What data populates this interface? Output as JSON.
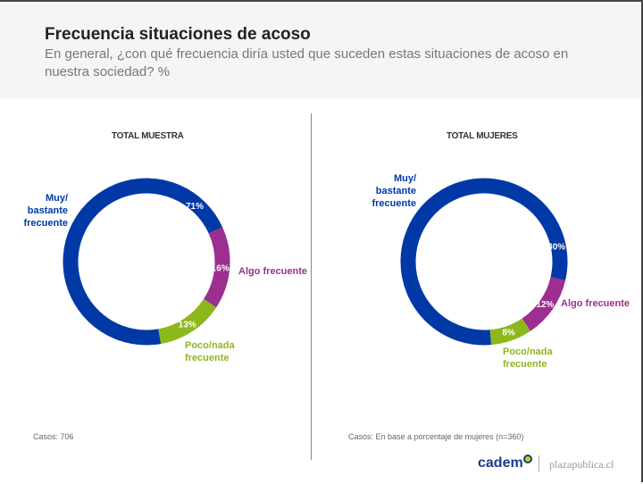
{
  "header": {
    "title": "Frecuencia situaciones de acoso",
    "subtitle": "En general, ¿con qué frecuencia diría usted que suceden estas situaciones de acoso en nuestra sociedad? %"
  },
  "colors": {
    "blue": "#0039a6",
    "purple": "#9c2f8f",
    "green": "#8db81c"
  },
  "chart_data": [
    {
      "type": "pie",
      "title": "TOTAL MUESTRA",
      "categories": [
        "Muy/ bastante frecuente",
        "Algo frecuente",
        "Poco/nada frecuente"
      ],
      "values": [
        71,
        16,
        13
      ],
      "labels": [
        "71%",
        "16%",
        "13%"
      ],
      "note": "Casos: 706"
    },
    {
      "type": "pie",
      "title": "TOTAL MUJERES",
      "categories": [
        "Muy/ bastante frecuente",
        "Algo frecuente",
        "Poco/nada frecuente"
      ],
      "values": [
        80,
        12,
        8
      ],
      "labels": [
        "80%",
        "12%",
        "8%"
      ],
      "note": "Casos: En base a porcentaje de mujeres (n=360)"
    }
  ],
  "footer": {
    "brand": "cadem",
    "partner": "plazapublica.cl"
  }
}
